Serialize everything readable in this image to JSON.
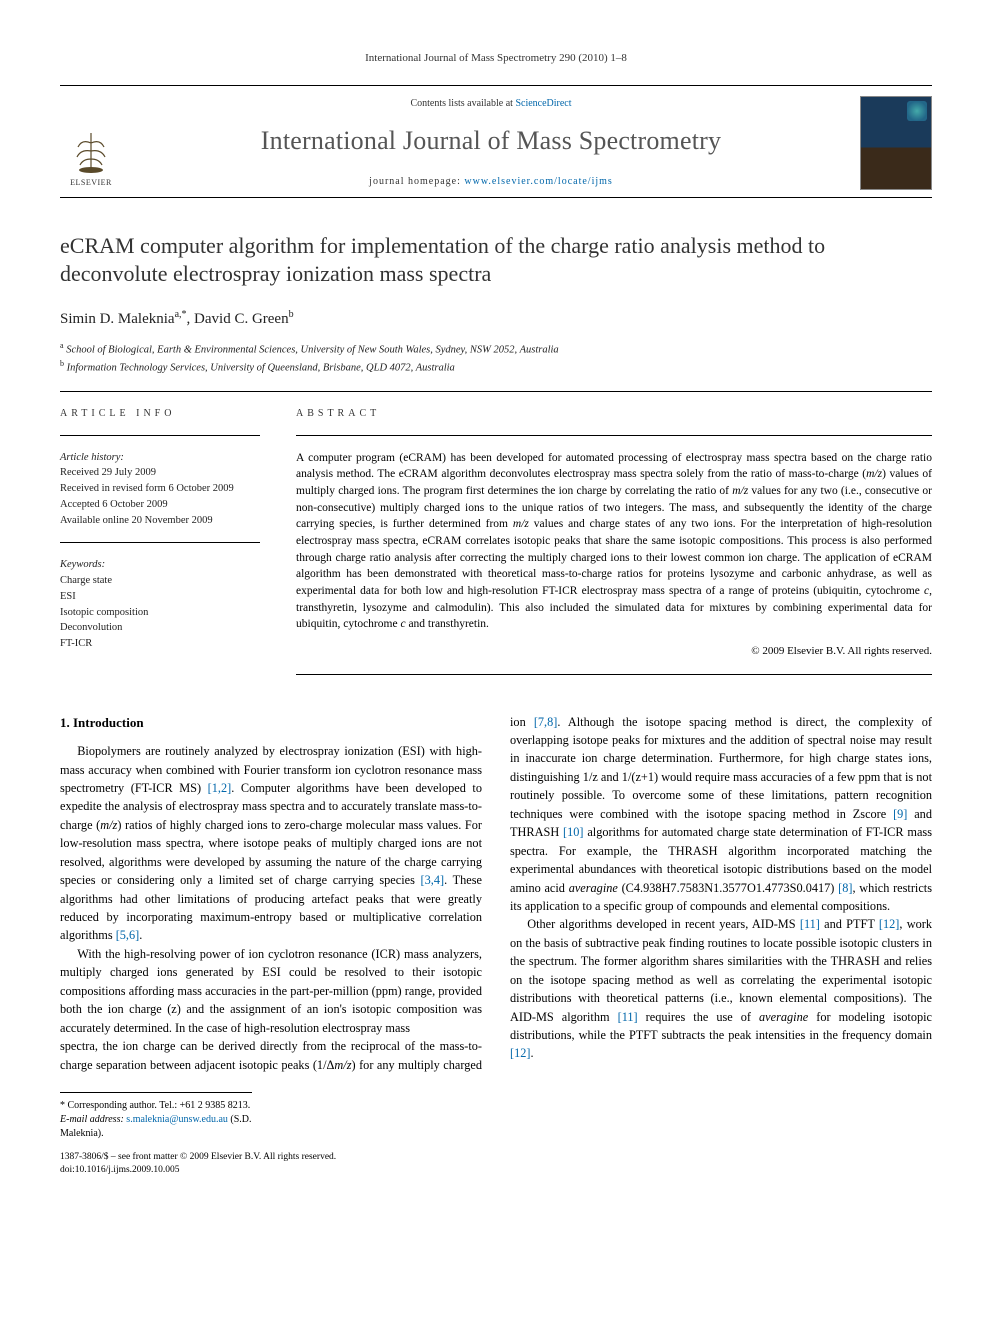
{
  "running_head": "International Journal of Mass Spectrometry 290 (2010) 1–8",
  "masthead": {
    "contents_prefix": "Contents lists available at ",
    "contents_link": "ScienceDirect",
    "journal_name": "International Journal of Mass Spectrometry",
    "homepage_prefix": "journal homepage: ",
    "homepage_url": "www.elsevier.com/locate/ijms",
    "publisher_word": "ELSEVIER"
  },
  "title": "eCRAM computer algorithm for implementation of the charge ratio analysis method to deconvolute electrospray ionization mass spectra",
  "authors_html": "Simin D. Maleknia",
  "author1_sup": "a,*",
  "author2": ", David C. Green",
  "author2_sup": "b",
  "affiliations": {
    "a": "School of Biological, Earth & Environmental Sciences, University of New South Wales, Sydney, NSW 2052, Australia",
    "b": "Information Technology Services, University of Queensland, Brisbane, QLD 4072, Australia"
  },
  "article_info": {
    "head": "ARTICLE INFO",
    "history_label": "Article history:",
    "received": "Received 29 July 2009",
    "revised": "Received in revised form 6 October 2009",
    "accepted": "Accepted 6 October 2009",
    "online": "Available online 20 November 2009",
    "keywords_label": "Keywords:",
    "keywords": [
      "Charge state",
      "ESI",
      "Isotopic composition",
      "Deconvolution",
      "FT-ICR"
    ]
  },
  "abstract": {
    "head": "ABSTRACT",
    "text": "A computer program (eCRAM) has been developed for automated processing of electrospray mass spectra based on the charge ratio analysis method. The eCRAM algorithm deconvolutes electrospray mass spectra solely from the ratio of mass-to-charge (m/z) values of multiply charged ions. The program first determines the ion charge by correlating the ratio of m/z values for any two (i.e., consecutive or non-consecutive) multiply charged ions to the unique ratios of two integers. The mass, and subsequently the identity of the charge carrying species, is further determined from m/z values and charge states of any two ions. For the interpretation of high-resolution electrospray mass spectra, eCRAM correlates isotopic peaks that share the same isotopic compositions. This process is also performed through charge ratio analysis after correcting the multiply charged ions to their lowest common ion charge. The application of eCRAM algorithm has been demonstrated with theoretical mass-to-charge ratios for proteins lysozyme and carbonic anhydrase, as well as experimental data for both low and high-resolution FT-ICR electrospray mass spectra of a range of proteins (ubiquitin, cytochrome c, transthyretin, lysozyme and calmodulin). This also included the simulated data for mixtures by combining experimental data for ubiquitin, cytochrome c and transthyretin.",
    "copyright": "© 2009 Elsevier B.V. All rights reserved."
  },
  "body": {
    "section1_head": "1. Introduction",
    "p1": "Biopolymers are routinely analyzed by electrospray ionization (ESI) with high-mass accuracy when combined with Fourier transform ion cyclotron resonance mass spectrometry (FT-ICR MS) [1,2]. Computer algorithms have been developed to expedite the analysis of electrospray mass spectra and to accurately translate mass-to-charge (m/z) ratios of highly charged ions to zero-charge molecular mass values. For low-resolution mass spectra, where isotope peaks of multiply charged ions are not resolved, algorithms were developed by assuming the nature of the charge carrying species or considering only a limited set of charge carrying species [3,4]. These algorithms had other limitations of producing artefact peaks that were greatly reduced by incorporating maximum-entropy based or multiplicative correlation algorithms [5,6].",
    "p2": "With the high-resolving power of ion cyclotron resonance (ICR) mass analyzers, multiply charged ions generated by ESI could be resolved to their isotopic compositions affording mass accuracies in the part-per-million (ppm) range, provided both the ion charge (z) and the assignment of an ion's isotopic composition was accurately determined. In the case of high-resolution electrospray mass",
    "p3": "spectra, the ion charge can be derived directly from the reciprocal of the mass-to-charge separation between adjacent isotopic peaks (1/Δm/z) for any multiply charged ion [7,8]. Although the isotope spacing method is direct, the complexity of overlapping isotope peaks for mixtures and the addition of spectral noise may result in inaccurate ion charge determination. Furthermore, for high charge states ions, distinguishing 1/z and 1/(z+1) would require mass accuracies of a few ppm that is not routinely possible. To overcome some of these limitations, pattern recognition techniques were combined with the isotope spacing method in Zscore [9] and THRASH [10] algorithms for automated charge state determination of FT-ICR mass spectra. For example, the THRASH algorithm incorporated matching the experimental abundances with theoretical isotopic distributions based on the model amino acid averagine (C4.938H7.7583N1.3577O1.4773S0.0417) [8], which restricts its application to a specific group of compounds and elemental compositions.",
    "p4": "Other algorithms developed in recent years, AID-MS [11] and PTFT [12], work on the basis of subtractive peak finding routines to locate possible isotopic clusters in the spectrum. The former algorithm shares similarities with the THRASH and relies on the isotope spacing method as well as correlating the experimental isotopic distributions with theoretical patterns (i.e., known elemental compositions). The AID-MS algorithm [11] requires the use of averagine for modeling isotopic distributions, while the PTFT subtracts the peak intensities in the frequency domain [12]."
  },
  "footnotes": {
    "corr": "* Corresponding author. Tel.: +61 2 9385 8213.",
    "email_label": "E-mail address: ",
    "email": "s.maleknia@unsw.edu.au",
    "email_suffix": " (S.D. Maleknia)."
  },
  "doi": {
    "line1": "1387-3806/$ – see front matter © 2009 Elsevier B.V. All rights reserved.",
    "line2": "doi:10.1016/j.ijms.2009.10.005"
  },
  "colors": {
    "link": "#0066aa",
    "text": "#000000",
    "heading_gray": "#555555"
  }
}
